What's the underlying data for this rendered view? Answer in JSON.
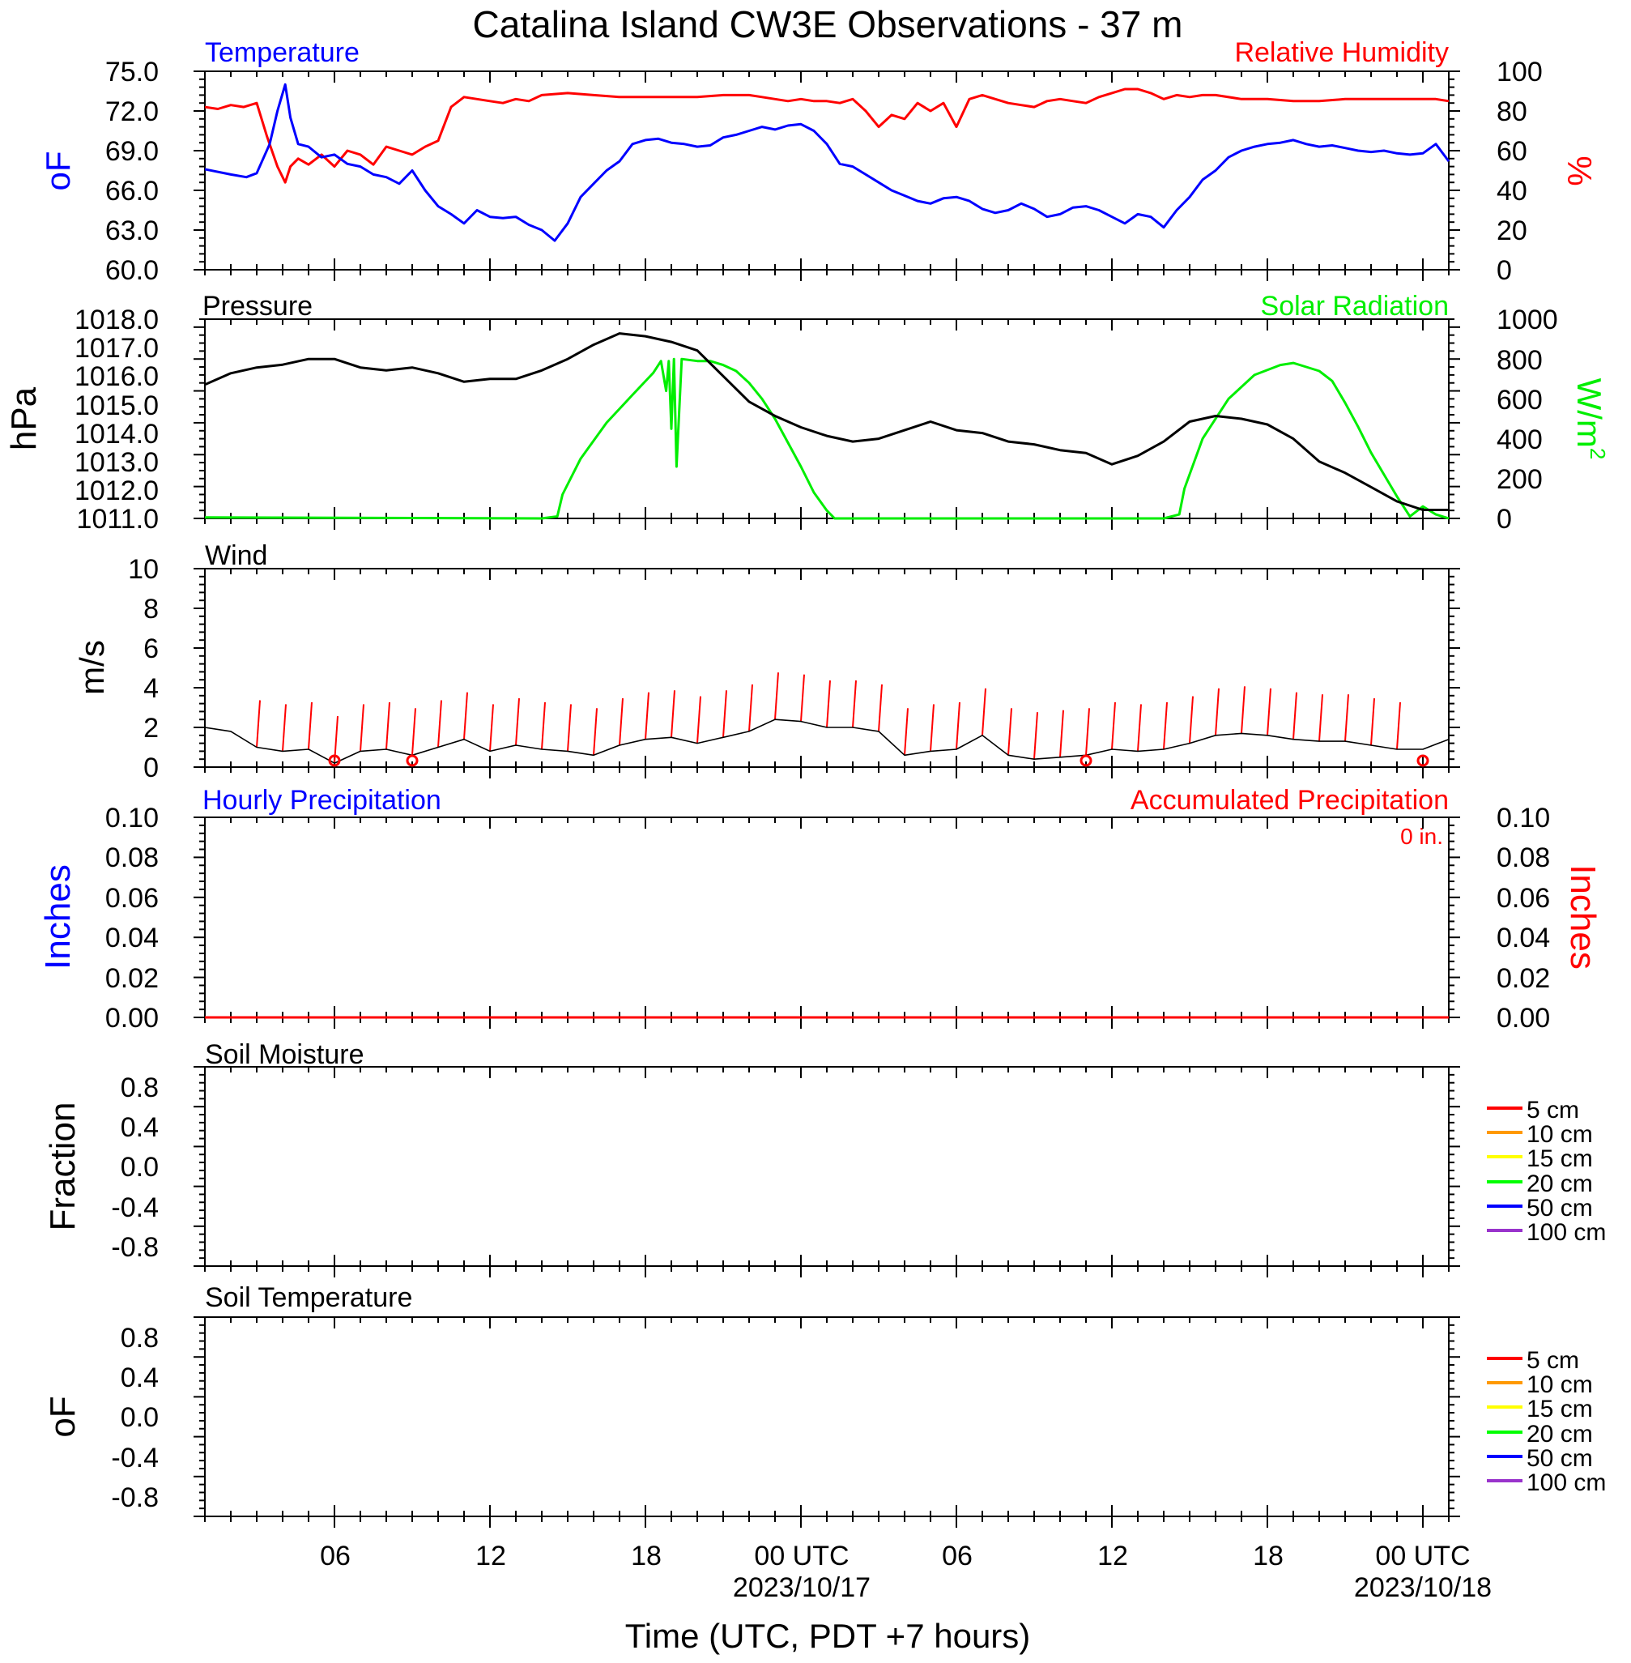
{
  "title": "Catalina Island CW3E Observations - 37 m",
  "xaxis_title": "Time (UTC, PDT +7 hours)",
  "x_ticks": [
    {
      "hour": 6,
      "label": "06",
      "date": ""
    },
    {
      "hour": 12,
      "label": "12",
      "date": ""
    },
    {
      "hour": 18,
      "label": "18",
      "date": ""
    },
    {
      "hour": 24,
      "label": "00 UTC",
      "date": "2023/10/17"
    },
    {
      "hour": 30,
      "label": "06",
      "date": ""
    },
    {
      "hour": 36,
      "label": "12",
      "date": ""
    },
    {
      "hour": 42,
      "label": "18",
      "date": ""
    },
    {
      "hour": 48,
      "label": "00 UTC",
      "date": "2023/10/18"
    }
  ],
  "colors": {
    "temperature": "#0000ff",
    "humidity": "#ff0000",
    "pressure": "#000000",
    "solar": "#00ee00",
    "wind": "#000000",
    "wind_barb": "#ff0000",
    "hourly_precip": "#0000ff",
    "accum_precip": "#ff0000"
  },
  "panels": {
    "temp_rh": {
      "left_title": "Temperature",
      "right_title": "Relative Humidity",
      "left_unit": "oF",
      "right_unit": "%",
      "left_ticks": [
        "60.0",
        "63.0",
        "66.0",
        "69.0",
        "72.0",
        "75.0"
      ],
      "right_ticks": [
        "0",
        "20",
        "40",
        "60",
        "80",
        "100"
      ]
    },
    "pressure_solar": {
      "left_title": "Pressure",
      "right_title": "Solar Radiation",
      "left_unit": "hPa",
      "right_unit": "W/m2",
      "left_ticks": [
        "1011.0",
        "1012.0",
        "1013.0",
        "1014.0",
        "1015.0",
        "1016.0",
        "1017.0",
        "1018.0"
      ],
      "right_ticks": [
        "0",
        "200",
        "400",
        "600",
        "800",
        "1000"
      ]
    },
    "wind": {
      "left_title": "Wind",
      "left_unit": "m/s",
      "left_ticks": [
        "0",
        "2",
        "4",
        "6",
        "8",
        "10"
      ]
    },
    "precip": {
      "left_title": "Hourly Precipitation",
      "right_title": "Accumulated Precipitation",
      "total_label": "0 in.",
      "left_unit": "Inches",
      "right_unit": "Inches",
      "left_ticks": [
        "0.00",
        "0.02",
        "0.04",
        "0.06",
        "0.08",
        "0.10"
      ],
      "right_ticks": [
        "0.00",
        "0.02",
        "0.04",
        "0.06",
        "0.08",
        "0.10"
      ]
    },
    "soil_moisture": {
      "left_title": "Soil Moisture",
      "left_unit": "Fraction",
      "left_ticks": [
        "-0.8",
        "-0.4",
        "0.0",
        "0.4",
        "0.8"
      ],
      "legend": [
        {
          "label": "5 cm",
          "color": "#ff0000"
        },
        {
          "label": "10 cm",
          "color": "#ff9900"
        },
        {
          "label": "15 cm",
          "color": "#ffff00"
        },
        {
          "label": "20 cm",
          "color": "#00ff00"
        },
        {
          "label": "50 cm",
          "color": "#0000ff"
        },
        {
          "label": "100 cm",
          "color": "#9933cc"
        }
      ]
    },
    "soil_temp": {
      "left_title": "Soil Temperature",
      "left_unit": "oF",
      "left_ticks": [
        "-0.8",
        "-0.4",
        "0.0",
        "0.4",
        "0.8"
      ],
      "legend": [
        {
          "label": "5 cm",
          "color": "#ff0000"
        },
        {
          "label": "10 cm",
          "color": "#ff9900"
        },
        {
          "label": "15 cm",
          "color": "#ffff00"
        },
        {
          "label": "20 cm",
          "color": "#00ff00"
        },
        {
          "label": "50 cm",
          "color": "#0000ff"
        },
        {
          "label": "100 cm",
          "color": "#9933cc"
        }
      ]
    }
  },
  "chart_data": [
    {
      "type": "line",
      "title": "Temperature / Relative Humidity",
      "x_unit": "hours since 2023/10/16 01 UTC",
      "xlim": [
        1,
        49
      ],
      "series": [
        {
          "name": "Temperature",
          "axis": "left",
          "ylim": [
            60,
            75
          ],
          "x": [
            1,
            2,
            2.6,
            3.0,
            3.5,
            3.8,
            4.1,
            4.3,
            4.6,
            5.0,
            5.5,
            6.0,
            6.5,
            7.0,
            7.5,
            8.0,
            8.5,
            9.0,
            9.5,
            10.0,
            10.5,
            11.0,
            11.5,
            12.0,
            12.5,
            13.0,
            13.5,
            14.0,
            14.5,
            15.0,
            15.5,
            16.0,
            16.5,
            17.0,
            17.5,
            18.0,
            18.5,
            19.0,
            19.5,
            20.0,
            20.5,
            21.0,
            21.5,
            22.0,
            22.5,
            23.0,
            23.5,
            24.0,
            24.5,
            25.0,
            25.5,
            26.0,
            26.5,
            27.0,
            27.5,
            28.0,
            28.5,
            29.0,
            29.5,
            30.0,
            30.5,
            31.0,
            31.5,
            32.0,
            32.5,
            33.0,
            33.5,
            34.0,
            34.5,
            35.0,
            35.5,
            36.0,
            36.5,
            37.0,
            37.5,
            38.0,
            38.5,
            39.0,
            39.5,
            40.0,
            40.5,
            41.0,
            41.5,
            42.0,
            42.5,
            43.0,
            43.5,
            44.0,
            44.5,
            45.0,
            45.5,
            46.0,
            46.5,
            47.0,
            47.5,
            48.0,
            48.5,
            49.0
          ],
          "values": [
            67.6,
            67.2,
            67.0,
            67.3,
            69.5,
            72.0,
            74.0,
            71.5,
            69.5,
            69.3,
            68.5,
            68.7,
            68.0,
            67.8,
            67.2,
            67.0,
            66.5,
            67.5,
            66.0,
            64.8,
            64.2,
            63.5,
            64.5,
            64.0,
            63.9,
            64.0,
            63.4,
            63.0,
            62.2,
            63.5,
            65.5,
            66.5,
            67.5,
            68.2,
            69.5,
            69.8,
            69.9,
            69.6,
            69.5,
            69.3,
            69.4,
            70.0,
            70.2,
            70.5,
            70.8,
            70.6,
            70.9,
            71.0,
            70.5,
            69.5,
            68.0,
            67.8,
            67.2,
            66.6,
            66.0,
            65.6,
            65.2,
            65.0,
            65.4,
            65.5,
            65.2,
            64.6,
            64.3,
            64.5,
            65.0,
            64.6,
            64.0,
            64.2,
            64.7,
            64.8,
            64.5,
            64.0,
            63.5,
            64.2,
            64.0,
            63.2,
            64.5,
            65.5,
            66.8,
            67.5,
            68.5,
            69.0,
            69.3,
            69.5,
            69.6,
            69.8,
            69.5,
            69.3,
            69.4,
            69.2,
            69.0,
            68.9,
            69.0,
            68.8,
            68.7,
            68.8,
            69.5,
            68.2
          ]
        },
        {
          "name": "Relative Humidity",
          "axis": "right",
          "ylim": [
            0,
            100
          ],
          "x": [
            1,
            1.5,
            2.0,
            2.5,
            3.0,
            3.4,
            3.8,
            4.1,
            4.3,
            4.6,
            5.0,
            5.5,
            6.0,
            6.5,
            7.0,
            7.5,
            8.0,
            8.5,
            9.0,
            9.5,
            10.0,
            10.5,
            11.0,
            11.5,
            12.0,
            12.5,
            13.0,
            13.5,
            14.0,
            15.0,
            16.0,
            17.0,
            18.0,
            19.0,
            20.0,
            21.0,
            22.0,
            22.5,
            23.0,
            23.5,
            24.0,
            24.5,
            25.0,
            25.5,
            26.0,
            26.5,
            27.0,
            27.5,
            28.0,
            28.5,
            29.0,
            29.5,
            30.0,
            30.5,
            31.0,
            31.5,
            32.0,
            32.5,
            33.0,
            33.5,
            34.0,
            34.5,
            35.0,
            35.5,
            36.0,
            36.5,
            37.0,
            37.5,
            38.0,
            38.5,
            39.0,
            39.5,
            40.0,
            41.0,
            42.0,
            43.0,
            44.0,
            45.0,
            46.0,
            47.0,
            48.0,
            48.5,
            49.0
          ],
          "values": [
            82,
            81,
            83,
            82,
            84,
            67,
            52,
            44,
            52,
            56,
            53,
            58,
            52,
            60,
            58,
            53,
            62,
            60,
            58,
            62,
            65,
            82,
            87,
            86,
            85,
            84,
            86,
            85,
            88,
            89,
            88,
            87,
            87,
            87,
            87,
            88,
            88,
            87,
            86,
            85,
            86,
            85,
            85,
            84,
            86,
            80,
            72,
            78,
            76,
            84,
            80,
            84,
            72,
            86,
            88,
            86,
            84,
            83,
            82,
            85,
            86,
            85,
            84,
            87,
            89,
            91,
            91,
            89,
            86,
            88,
            87,
            88,
            88,
            86,
            86,
            85,
            85,
            86,
            86,
            86,
            86,
            86,
            85
          ]
        }
      ]
    },
    {
      "type": "line",
      "title": "Pressure / Solar Radiation",
      "x_unit": "hours since 2023/10/16 01 UTC",
      "xlim": [
        1,
        49
      ],
      "series": [
        {
          "name": "Pressure",
          "axis": "left",
          "ylim": [
            1011,
            1018
          ],
          "x": [
            1,
            2,
            3,
            4,
            5,
            6,
            7,
            8,
            9,
            10,
            11,
            12,
            13,
            14,
            15,
            16,
            17,
            18,
            19,
            20,
            21,
            22,
            23,
            24,
            25,
            26,
            27,
            28,
            29,
            30,
            31,
            32,
            33,
            34,
            35,
            36,
            37,
            38,
            39,
            40,
            41,
            42,
            43,
            44,
            45,
            46,
            47,
            48,
            49
          ],
          "values": [
            1015.7,
            1016.1,
            1016.3,
            1016.4,
            1016.6,
            1016.6,
            1016.3,
            1016.2,
            1016.3,
            1016.1,
            1015.8,
            1015.9,
            1015.9,
            1016.2,
            1016.6,
            1017.1,
            1017.5,
            1017.4,
            1017.2,
            1016.9,
            1016.0,
            1015.1,
            1014.6,
            1014.2,
            1013.9,
            1013.7,
            1013.8,
            1014.1,
            1014.4,
            1014.1,
            1014.0,
            1013.7,
            1013.6,
            1013.4,
            1013.3,
            1012.9,
            1013.2,
            1013.7,
            1014.4,
            1014.6,
            1014.5,
            1014.3,
            1013.8,
            1013.0,
            1012.6,
            1012.1,
            1011.6,
            1011.3,
            1011.3
          ]
        },
        {
          "name": "Solar Radiation",
          "axis": "right",
          "ylim": [
            0,
            1000
          ],
          "x": [
            1,
            14.0,
            14.6,
            14.8,
            15.5,
            16.5,
            17.5,
            18.3,
            18.6,
            18.8,
            18.9,
            19.0,
            19.1,
            19.2,
            19.4,
            20.0,
            20.5,
            21.0,
            21.5,
            22.0,
            22.5,
            23.0,
            23.5,
            24.0,
            24.5,
            25.0,
            25.3,
            25.6,
            26.0,
            30.0,
            38.0,
            38.6,
            38.8,
            39.5,
            40.5,
            41.5,
            42.5,
            43.0,
            43.5,
            44.0,
            44.5,
            45.0,
            45.5,
            46.0,
            46.5,
            47.0,
            47.5,
            48.0,
            48.5,
            49.0
          ],
          "values": [
            5,
            0,
            10,
            120,
            300,
            480,
            620,
            730,
            790,
            640,
            790,
            450,
            800,
            260,
            800,
            790,
            790,
            770,
            740,
            680,
            600,
            500,
            380,
            260,
            130,
            40,
            0,
            0,
            0,
            0,
            0,
            20,
            150,
            400,
            600,
            720,
            770,
            780,
            760,
            740,
            690,
            580,
            460,
            330,
            220,
            110,
            10,
            60,
            20,
            0
          ]
        }
      ]
    },
    {
      "type": "line",
      "title": "Wind",
      "x_unit": "hours since 2023/10/16 01 UTC",
      "xlim": [
        1,
        49
      ],
      "ylim": [
        0,
        10
      ],
      "series": [
        {
          "name": "Wind",
          "x": [
            1,
            2,
            3,
            4,
            5,
            6,
            7,
            8,
            9,
            10,
            11,
            12,
            13,
            14,
            15,
            16,
            17,
            18,
            19,
            20,
            21,
            22,
            23,
            24,
            25,
            26,
            27,
            28,
            29,
            30,
            31,
            32,
            33,
            34,
            35,
            36,
            37,
            38,
            39,
            40,
            41,
            42,
            43,
            44,
            45,
            46,
            47,
            48,
            49
          ],
          "values": [
            2.0,
            1.8,
            1.0,
            0.8,
            0.9,
            0.2,
            0.8,
            0.9,
            0.6,
            1.0,
            1.4,
            0.8,
            1.1,
            0.9,
            0.8,
            0.6,
            1.1,
            1.4,
            1.5,
            1.2,
            1.5,
            1.8,
            2.4,
            2.3,
            2.0,
            2.0,
            1.8,
            0.6,
            0.8,
            0.9,
            1.6,
            0.6,
            0.4,
            0.5,
            0.6,
            0.9,
            0.8,
            0.9,
            1.2,
            1.6,
            1.7,
            1.6,
            1.4,
            1.3,
            1.3,
            1.1,
            0.9,
            0.9,
            1.4
          ]
        }
      ],
      "calm_markers_hours": [
        6,
        9,
        35,
        48
      ]
    },
    {
      "type": "line",
      "title": "Hourly Precipitation / Accumulated Precipitation",
      "xlim": [
        1,
        49
      ],
      "ylim": [
        0,
        0.1
      ],
      "series": [
        {
          "name": "Hourly Precipitation",
          "x": [
            1,
            49
          ],
          "values": [
            0,
            0
          ]
        },
        {
          "name": "Accumulated Precipitation",
          "x": [
            1,
            49
          ],
          "values": [
            0,
            0
          ]
        }
      ]
    },
    {
      "type": "line",
      "title": "Soil Moisture",
      "xlim": [
        1,
        49
      ],
      "ylim": [
        -1,
        1
      ],
      "series": []
    },
    {
      "type": "line",
      "title": "Soil Temperature",
      "xlim": [
        1,
        49
      ],
      "ylim": [
        -1,
        1
      ],
      "series": []
    }
  ]
}
